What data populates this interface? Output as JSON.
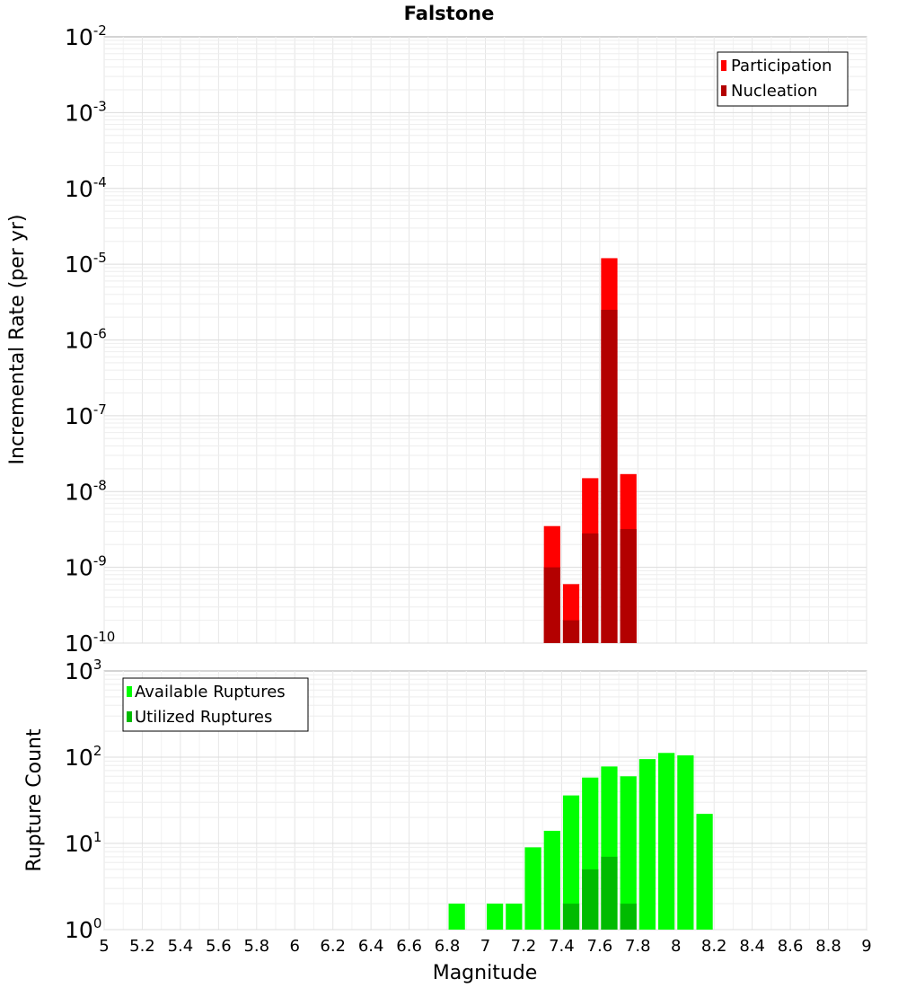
{
  "chart_data": [
    {
      "type": "bar",
      "title": "Falstone",
      "xlabel": "Magnitude",
      "ylabel": "Incremental Rate (per yr)",
      "yscale": "log",
      "xlim": [
        5,
        9
      ],
      "ylim": [
        1e-10,
        0.01
      ],
      "grid": true,
      "legend_position": "top-right",
      "bin_width": 0.1,
      "x": [
        7.35,
        7.45,
        7.55,
        7.65,
        7.75
      ],
      "series": [
        {
          "name": "Participation",
          "color": "#ff0000",
          "values": [
            3.5e-09,
            6e-10,
            1.5e-08,
            1.2e-05,
            1.7e-08
          ]
        },
        {
          "name": "Nucleation",
          "color": "#b30000",
          "values": [
            1e-09,
            2e-10,
            2.8e-09,
            2.5e-06,
            3.2e-09
          ]
        }
      ]
    },
    {
      "type": "bar",
      "xlabel": "Magnitude",
      "ylabel": "Rupture Count",
      "yscale": "log",
      "xlim": [
        5,
        9
      ],
      "ylim": [
        1,
        1000
      ],
      "grid": true,
      "legend_position": "top-left",
      "bin_width": 0.1,
      "x": [
        6.85,
        7.05,
        7.15,
        7.25,
        7.35,
        7.45,
        7.55,
        7.65,
        7.75,
        7.85,
        7.95,
        8.05,
        8.15
      ],
      "series": [
        {
          "name": "Available Ruptures",
          "color": "#00ff00",
          "values": [
            2,
            2,
            2,
            9,
            14,
            36,
            58,
            78,
            60,
            95,
            112,
            105,
            22
          ]
        },
        {
          "name": "Utilized Ruptures",
          "color": "#00bb00",
          "values": [
            null,
            null,
            null,
            null,
            1,
            2,
            5,
            7,
            2,
            null,
            null,
            null,
            null
          ]
        }
      ]
    }
  ],
  "x_ticks": [
    "5",
    "5.2",
    "5.4",
    "5.6",
    "5.8",
    "6",
    "6.2",
    "6.4",
    "6.6",
    "6.8",
    "7",
    "7.2",
    "7.4",
    "7.6",
    "7.8",
    "8",
    "8.2",
    "8.4",
    "8.6",
    "8.8",
    "9"
  ],
  "top_y_ticks": [
    {
      "base": "10",
      "exp": "-2"
    },
    {
      "base": "10",
      "exp": "-3"
    },
    {
      "base": "10",
      "exp": "-4"
    },
    {
      "base": "10",
      "exp": "-5"
    },
    {
      "base": "10",
      "exp": "-6"
    },
    {
      "base": "10",
      "exp": "-7"
    },
    {
      "base": "10",
      "exp": "-8"
    },
    {
      "base": "10",
      "exp": "-9"
    },
    {
      "base": "10",
      "exp": "-10"
    }
  ],
  "bottom_y_ticks": [
    {
      "base": "10",
      "exp": "3"
    },
    {
      "base": "10",
      "exp": "2"
    },
    {
      "base": "10",
      "exp": "1"
    },
    {
      "base": "10",
      "exp": "0"
    }
  ]
}
